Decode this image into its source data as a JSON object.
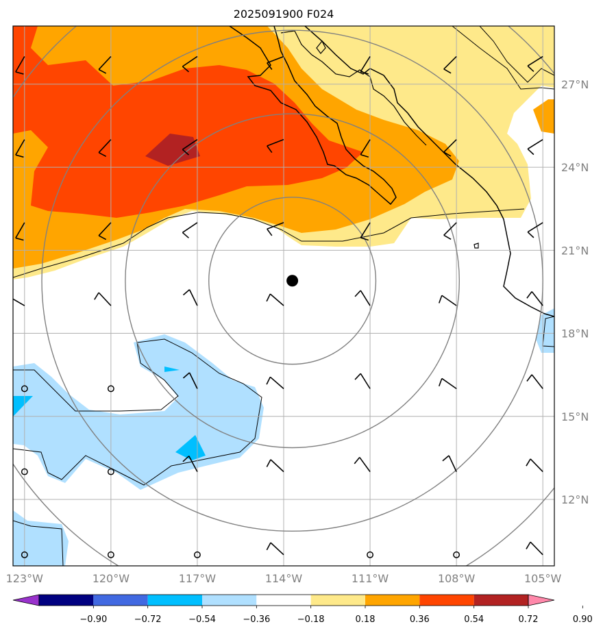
{
  "title": "2025091900 F024",
  "map": {
    "lon_range": [
      -123.4,
      -104.6
    ],
    "lat_range": [
      9.6,
      29.1
    ],
    "lon_ticks": [
      {
        "value": -123,
        "label": "123°W"
      },
      {
        "value": -120,
        "label": "120°W"
      },
      {
        "value": -117,
        "label": "117°W"
      },
      {
        "value": -114,
        "label": "114°W"
      },
      {
        "value": -111,
        "label": "111°W"
      },
      {
        "value": -108,
        "label": "108°W"
      },
      {
        "value": -105,
        "label": "105°W"
      }
    ],
    "lat_ticks": [
      {
        "value": 27,
        "label": "27°N"
      },
      {
        "value": 24,
        "label": "24°N"
      },
      {
        "value": 21,
        "label": "21°N"
      },
      {
        "value": 18,
        "label": "18°N"
      },
      {
        "value": 15,
        "label": "15°N"
      },
      {
        "value": 12,
        "label": "12°N"
      }
    ],
    "storm_center": {
      "lon": -113.7,
      "lat": 19.9
    },
    "range_rings_deg": [
      2.9,
      5.8,
      8.7,
      11.6
    ],
    "colors": {
      "grid": "#b0b0b0",
      "ring": "#808080",
      "coast": "#000000",
      "fill_pos_1": "#fee98a",
      "fill_pos_2": "#ffa500",
      "fill_pos_3": "#ff4500",
      "fill_pos_4": "#b22222",
      "fill_neg_1": "#b0e0ff",
      "fill_neg_2": "#00bfff"
    }
  },
  "colorbar": {
    "ticks": [
      "−0.90",
      "−0.72",
      "−0.54",
      "−0.36",
      "−0.18",
      "0.18",
      "0.36",
      "0.54",
      "0.72",
      "0.90"
    ],
    "colors": [
      "#9932cc",
      "#000080",
      "#4169e1",
      "#00bfff",
      "#b0e0ff",
      "#ffffff",
      "#fee98a",
      "#ffa500",
      "#ff4500",
      "#b22222",
      "#ff88aa"
    ]
  }
}
